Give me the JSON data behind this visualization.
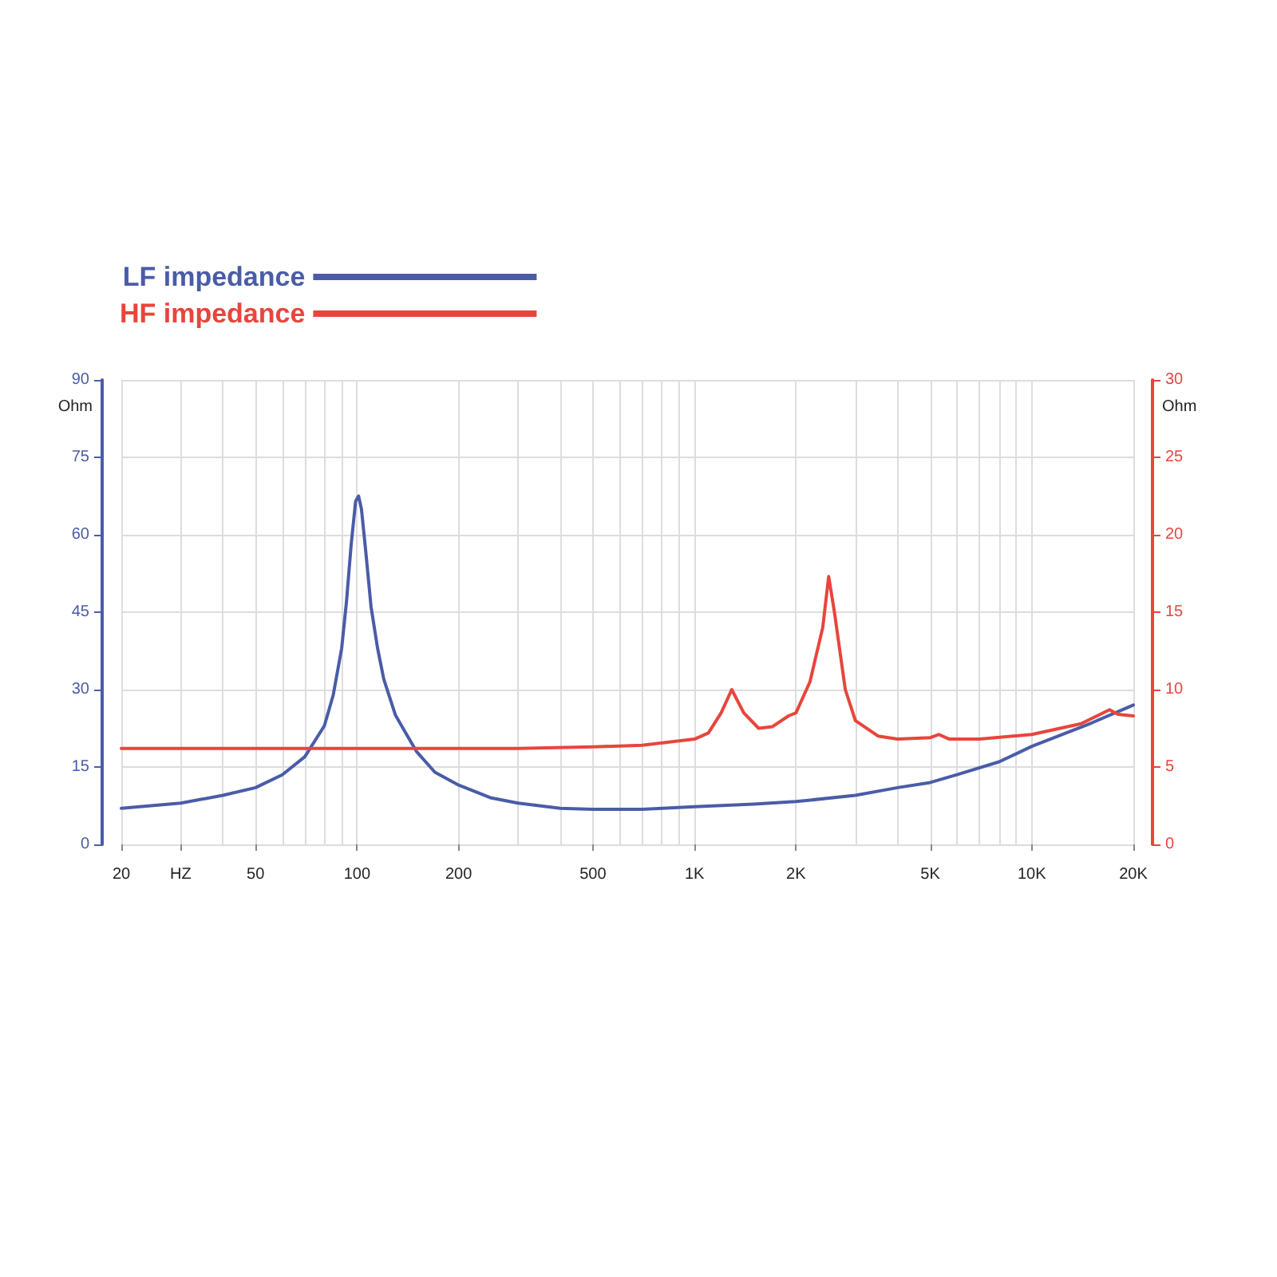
{
  "chart_data": {
    "type": "line",
    "ylabel": "Ohm",
    "y2label": "Ohm",
    "log": "x",
    "grid": true,
    "legend": "top left",
    "marker": "none",
    "line_style": "solid",
    "xlim": [
      20,
      20000
    ],
    "xticks": [
      20,
      {
        "value": 30,
        "label": "HZ"
      },
      50,
      100,
      200,
      500,
      {
        "value": 1000,
        "label": "1K"
      },
      {
        "value": 2000,
        "label": "2K"
      },
      {
        "value": 5000,
        "label": "5K"
      },
      {
        "value": 10000,
        "label": "10K"
      },
      {
        "value": 20000,
        "label": "20K"
      }
    ],
    "ylim": [
      0,
      90
    ],
    "yticks": [
      0,
      15,
      30,
      45,
      60,
      75,
      90
    ],
    "y2lim": [
      0,
      30
    ],
    "y2ticks": [
      0,
      5,
      10,
      15,
      20,
      25,
      30
    ],
    "series": [
      {
        "name": "LF impedance",
        "color": "#4a5ca8",
        "x": [
          20,
          30,
          40,
          50,
          60,
          70,
          80,
          85,
          90,
          93,
          96,
          99,
          101,
          103,
          106,
          110,
          115,
          120,
          130,
          150,
          170,
          200,
          250,
          300,
          400,
          500,
          700,
          1000,
          1500,
          2000,
          3000,
          4000,
          5000,
          6000,
          8000,
          10000,
          15000,
          20000
        ],
        "values": [
          7,
          8,
          9.5,
          11,
          13.5,
          17,
          23,
          29,
          38,
          47,
          58,
          66.5,
          67.5,
          65,
          57,
          46,
          38,
          32,
          25,
          18,
          14,
          11.5,
          9,
          8,
          7,
          6.8,
          6.8,
          7.3,
          7.8,
          8.3,
          9.5,
          11,
          12,
          13.5,
          16,
          19,
          23.5,
          27
        ]
      },
      {
        "name": "HF impedance",
        "color": "#e8453c",
        "axis": "y2",
        "x": [
          20,
          100,
          300,
          500,
          700,
          1000,
          1100,
          1200,
          1290,
          1400,
          1550,
          1700,
          1900,
          2000,
          2200,
          2400,
          2500,
          2600,
          2800,
          3000,
          3500,
          4000,
          5000,
          5300,
          5700,
          7000,
          10000,
          14000,
          17000,
          18000,
          20000
        ],
        "values": [
          6.2,
          6.2,
          6.2,
          6.3,
          6.4,
          6.8,
          7.2,
          8.5,
          10,
          8.5,
          7.5,
          7.6,
          8.3,
          8.5,
          10.5,
          14,
          17.3,
          15,
          10,
          8,
          7,
          6.8,
          6.9,
          7.1,
          6.8,
          6.8,
          7.1,
          7.8,
          8.7,
          8.4,
          8.3
        ]
      }
    ]
  }
}
